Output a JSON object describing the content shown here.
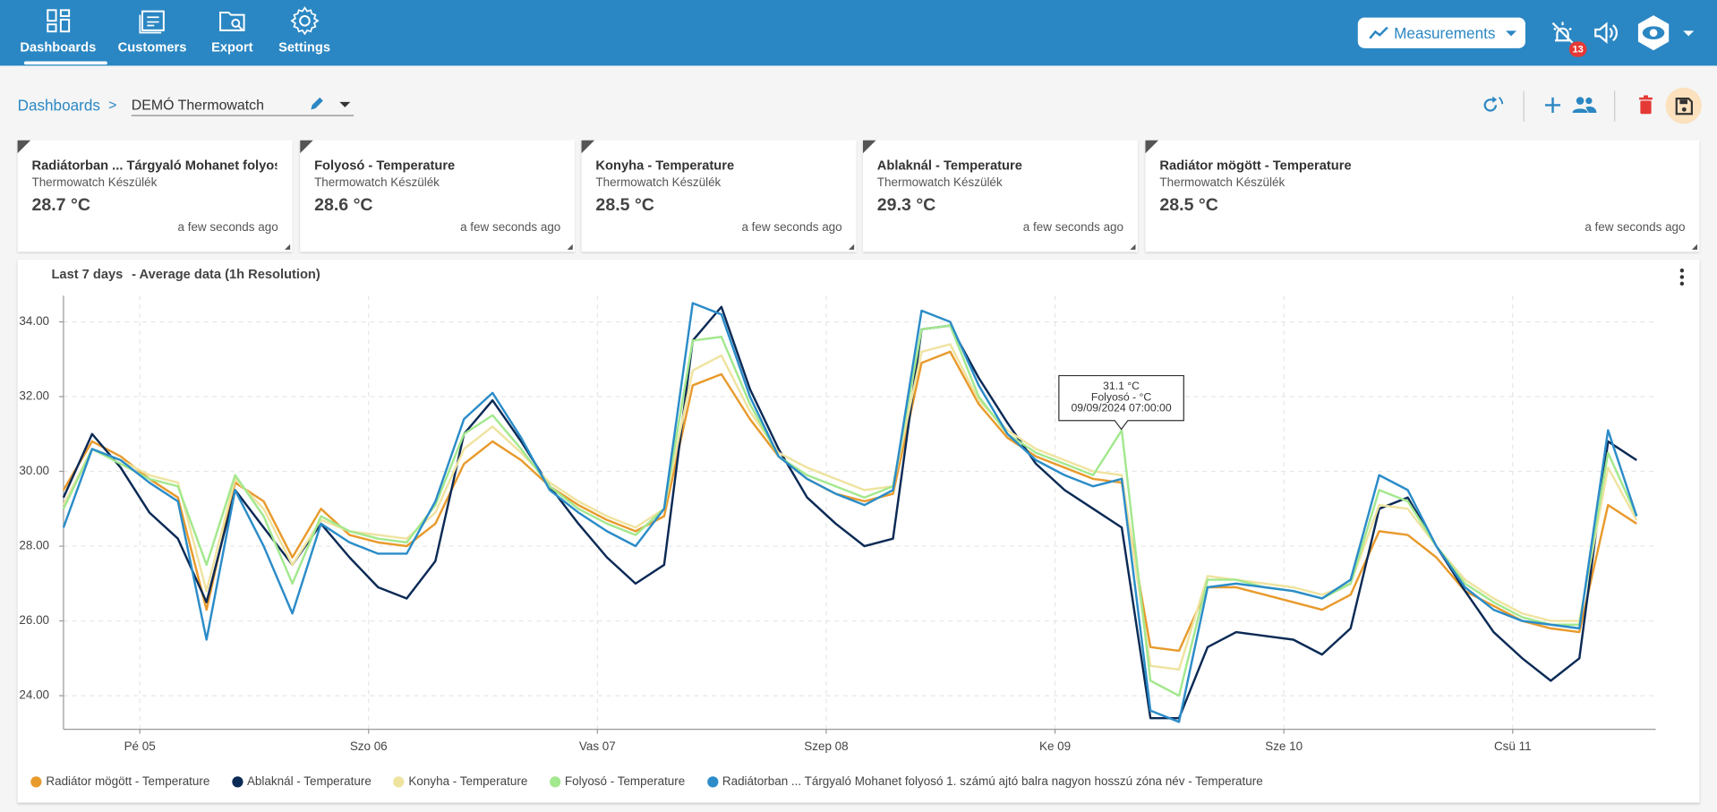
{
  "nav": {
    "items": [
      "Dashboards",
      "Customers",
      "Export",
      "Settings"
    ],
    "measurements": "Measurements",
    "alarm_count": 13
  },
  "breadcrumb": {
    "root": "Dashboards",
    "separator": ">",
    "current": "DEMÓ Thermowatch"
  },
  "cards": [
    {
      "title": "Radiátorban ... Tárgyaló Mohanet folyos…",
      "device": "Thermowatch Készülék",
      "value": "28.7 °C",
      "time": "a few seconds ago"
    },
    {
      "title": "Folyosó - Temperature",
      "device": "Thermowatch Készülék",
      "value": "28.6 °C",
      "time": "a few seconds ago"
    },
    {
      "title": "Konyha - Temperature",
      "device": "Thermowatch Készülék",
      "value": "28.5 °C",
      "time": "a few seconds ago"
    },
    {
      "title": "Ablaknál - Temperature",
      "device": "Thermowatch Készülék",
      "value": "29.3 °C",
      "time": "a few seconds ago"
    },
    {
      "title": "Radiátor mögött - Temperature",
      "device": "Thermowatch Készülék",
      "value": "28.5 °C",
      "time": "a few seconds ago"
    }
  ],
  "chart_data": {
    "type": "line",
    "title": "Last 7 days",
    "subtitle": "- Average data (1h Resolution)",
    "x": [
      "2024-09-04T16:00",
      "2024-09-04T19:00",
      "2024-09-04T22:00",
      "2024-09-05T01:00",
      "2024-09-05T04:00",
      "2024-09-05T07:00",
      "2024-09-05T10:00",
      "2024-09-05T13:00",
      "2024-09-05T16:00",
      "2024-09-05T19:00",
      "2024-09-05T22:00",
      "2024-09-06T01:00",
      "2024-09-06T04:00",
      "2024-09-06T07:00",
      "2024-09-06T10:00",
      "2024-09-06T13:00",
      "2024-09-06T16:00",
      "2024-09-06T19:00",
      "2024-09-06T22:00",
      "2024-09-07T01:00",
      "2024-09-07T04:00",
      "2024-09-07T07:00",
      "2024-09-07T10:00",
      "2024-09-07T13:00",
      "2024-09-07T16:00",
      "2024-09-07T19:00",
      "2024-09-07T22:00",
      "2024-09-08T01:00",
      "2024-09-08T04:00",
      "2024-09-08T07:00",
      "2024-09-08T10:00",
      "2024-09-08T13:00",
      "2024-09-08T16:00",
      "2024-09-08T19:00",
      "2024-09-08T22:00",
      "2024-09-09T01:00",
      "2024-09-09T04:00",
      "2024-09-09T07:00",
      "2024-09-09T10:00",
      "2024-09-09T13:00",
      "2024-09-09T16:00",
      "2024-09-09T19:00",
      "2024-09-09T22:00",
      "2024-09-10T01:00",
      "2024-09-10T04:00",
      "2024-09-10T07:00",
      "2024-09-10T10:00",
      "2024-09-10T13:00",
      "2024-09-10T16:00",
      "2024-09-10T19:00",
      "2024-09-10T22:00",
      "2024-09-11T01:00",
      "2024-09-11T04:00",
      "2024-09-11T07:00",
      "2024-09-11T10:00",
      "2024-09-11T13:00"
    ],
    "series": [
      {
        "name": "Radiátor mögött - Temperature",
        "color": "#e89a2c",
        "values": [
          29.5,
          30.8,
          30.4,
          29.8,
          29.3,
          26.3,
          29.7,
          29.2,
          27.7,
          29.0,
          28.3,
          28.1,
          28.0,
          28.6,
          30.2,
          30.8,
          30.3,
          29.6,
          29.1,
          28.7,
          28.4,
          28.8,
          32.3,
          32.6,
          31.4,
          30.4,
          29.8,
          29.4,
          29.2,
          29.4,
          32.9,
          33.2,
          31.8,
          30.9,
          30.4,
          30.1,
          29.8,
          29.7,
          25.3,
          25.2,
          26.9,
          26.9,
          26.7,
          26.5,
          26.3,
          26.7,
          28.4,
          28.3,
          27.7,
          26.8,
          26.4,
          26.0,
          25.8,
          25.7,
          29.1,
          28.6
        ]
      },
      {
        "name": "Ablaknál - Temperature",
        "color": "#0b2a55",
        "values": [
          29.3,
          31.0,
          30.1,
          28.9,
          28.2,
          26.5,
          29.5,
          28.5,
          27.5,
          28.6,
          27.7,
          26.9,
          26.6,
          27.6,
          31.0,
          31.9,
          30.8,
          29.6,
          28.6,
          27.7,
          27.0,
          27.5,
          33.5,
          34.4,
          32.2,
          30.6,
          29.3,
          28.6,
          28.0,
          28.2,
          33.8,
          33.9,
          32.5,
          31.3,
          30.2,
          29.5,
          29.0,
          28.5,
          23.4,
          23.4,
          25.3,
          25.7,
          25.6,
          25.5,
          25.1,
          25.8,
          29.0,
          29.3,
          28.0,
          26.8,
          25.7,
          25.0,
          24.4,
          25.0,
          30.8,
          30.3
        ]
      },
      {
        "name": "Konyha - Temperature",
        "color": "#efe3a0",
        "values": [
          29.1,
          30.6,
          30.3,
          29.9,
          29.7,
          26.8,
          29.8,
          29.0,
          27.5,
          28.7,
          28.4,
          28.3,
          28.2,
          28.9,
          30.6,
          31.2,
          30.5,
          29.7,
          29.2,
          28.8,
          28.5,
          29.0,
          32.7,
          33.1,
          31.6,
          30.5,
          30.1,
          29.8,
          29.5,
          29.6,
          33.2,
          33.4,
          31.9,
          31.1,
          30.6,
          30.3,
          30.0,
          29.9,
          24.8,
          24.7,
          27.2,
          27.1,
          27.0,
          26.9,
          26.7,
          27.0,
          29.1,
          29.0,
          28.0,
          27.1,
          26.6,
          26.2,
          26.0,
          26.0,
          30.1,
          28.7
        ]
      },
      {
        "name": "Folyosó - Temperature",
        "color": "#a3e88e",
        "values": [
          29.0,
          30.6,
          30.2,
          29.8,
          29.6,
          27.5,
          29.9,
          28.8,
          27.0,
          28.8,
          28.4,
          28.2,
          28.1,
          29.1,
          31.0,
          31.5,
          30.6,
          29.6,
          29.0,
          28.6,
          28.3,
          29.0,
          33.5,
          33.6,
          31.8,
          30.4,
          29.9,
          29.6,
          29.3,
          29.6,
          33.8,
          33.9,
          32.0,
          31.0,
          30.5,
          30.2,
          29.9,
          31.1,
          24.4,
          24.0,
          27.1,
          27.1,
          26.9,
          26.8,
          26.6,
          27.0,
          29.5,
          29.2,
          28.0,
          27.0,
          26.5,
          26.1,
          25.9,
          25.9,
          30.5,
          28.8
        ]
      },
      {
        "name": "Radiátorban ... Tárgyaló Mohanet folyosó 1. számú ajtó balra nagyon hosszú zóna név - Temperature",
        "color": "#2b8cc8",
        "values": [
          28.5,
          30.6,
          30.3,
          29.7,
          29.2,
          25.5,
          29.5,
          28.0,
          26.2,
          28.6,
          28.1,
          27.8,
          27.8,
          29.2,
          31.4,
          32.1,
          30.9,
          29.5,
          28.9,
          28.4,
          28.0,
          29.0,
          34.5,
          34.2,
          32.0,
          30.4,
          29.8,
          29.4,
          29.1,
          29.5,
          34.3,
          34.0,
          32.3,
          31.0,
          30.3,
          29.9,
          29.6,
          29.8,
          23.6,
          23.3,
          26.9,
          27.0,
          26.9,
          26.8,
          26.6,
          27.1,
          29.9,
          29.5,
          28.0,
          26.9,
          26.3,
          26.0,
          25.9,
          25.8,
          31.1,
          28.8
        ]
      }
    ],
    "xlim": [
      "2024-09-04T16:00",
      "2024-09-11T15:00"
    ],
    "xticks": [
      {
        "value": "2024-09-05T00:00",
        "label": "Pé 05"
      },
      {
        "value": "2024-09-06T00:00",
        "label": "Szo 06"
      },
      {
        "value": "2024-09-07T00:00",
        "label": "Vas 07"
      },
      {
        "value": "2024-09-08T00:00",
        "label": "Szep 08"
      },
      {
        "value": "2024-09-09T00:00",
        "label": "Ke 09"
      },
      {
        "value": "2024-09-10T00:00",
        "label": "Sze 10"
      },
      {
        "value": "2024-09-11T00:00",
        "label": "Csü 11"
      }
    ],
    "ylim": [
      23.1,
      34.7
    ],
    "yticks": [
      {
        "value": 24,
        "label": "24.00"
      },
      {
        "value": 26,
        "label": "26.00"
      },
      {
        "value": 28,
        "label": "28.00"
      },
      {
        "value": 30,
        "label": "30.00"
      },
      {
        "value": 32,
        "label": "32.00"
      },
      {
        "value": 34,
        "label": "34.00"
      }
    ],
    "grid": true,
    "legend": "bottom",
    "annotations": [
      "31.1 °C",
      "Folyosó - °C",
      "09/09/2024 07:00:00"
    ]
  }
}
